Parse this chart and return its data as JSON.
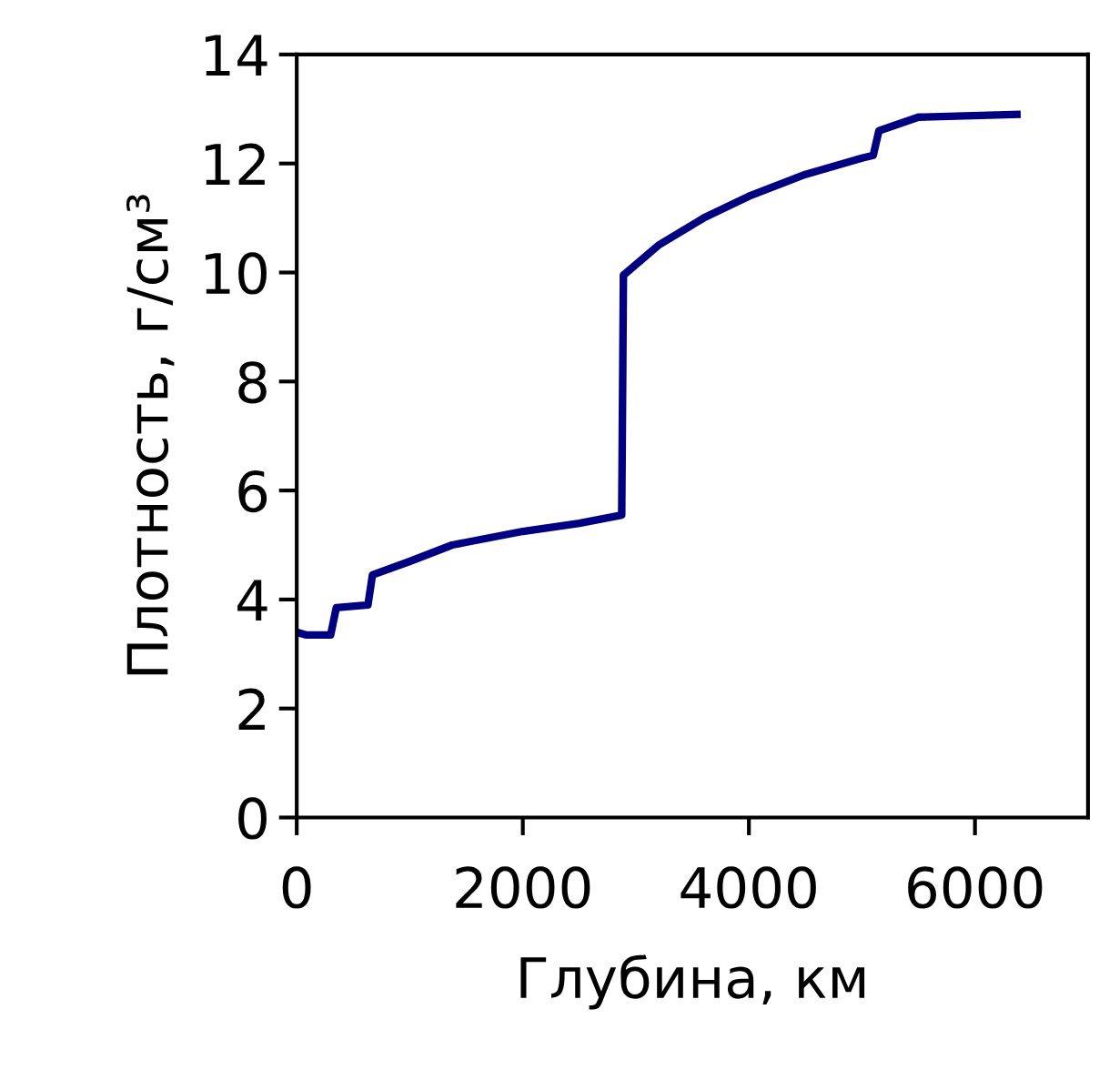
{
  "chart_data": {
    "type": "line",
    "xlabel": "Глубина, км",
    "ylabel": "Плотность, г/см³",
    "xlim": [
      0,
      7000
    ],
    "xticks": [
      0,
      2000,
      4000,
      6000
    ],
    "ylim": [
      0,
      14
    ],
    "yticks": [
      0,
      2,
      4,
      6,
      8,
      10,
      12,
      14
    ],
    "grid": false,
    "legend": false,
    "marker": "none",
    "line_style": "solid",
    "series": [
      {
        "color": "#000080",
        "x": [
          0,
          80,
          300,
          350,
          630,
          670,
          1000,
          1375,
          2000,
          2500,
          2875,
          2890,
          3200,
          3600,
          4000,
          4500,
          5000,
          5100,
          5150,
          5500,
          6371
        ],
        "values": [
          3.4,
          3.35,
          3.35,
          3.85,
          3.9,
          4.45,
          4.7,
          5.0,
          5.25,
          5.4,
          5.55,
          9.95,
          10.5,
          11.0,
          11.4,
          11.8,
          12.1,
          12.15,
          12.6,
          12.85,
          12.9
        ]
      }
    ]
  }
}
